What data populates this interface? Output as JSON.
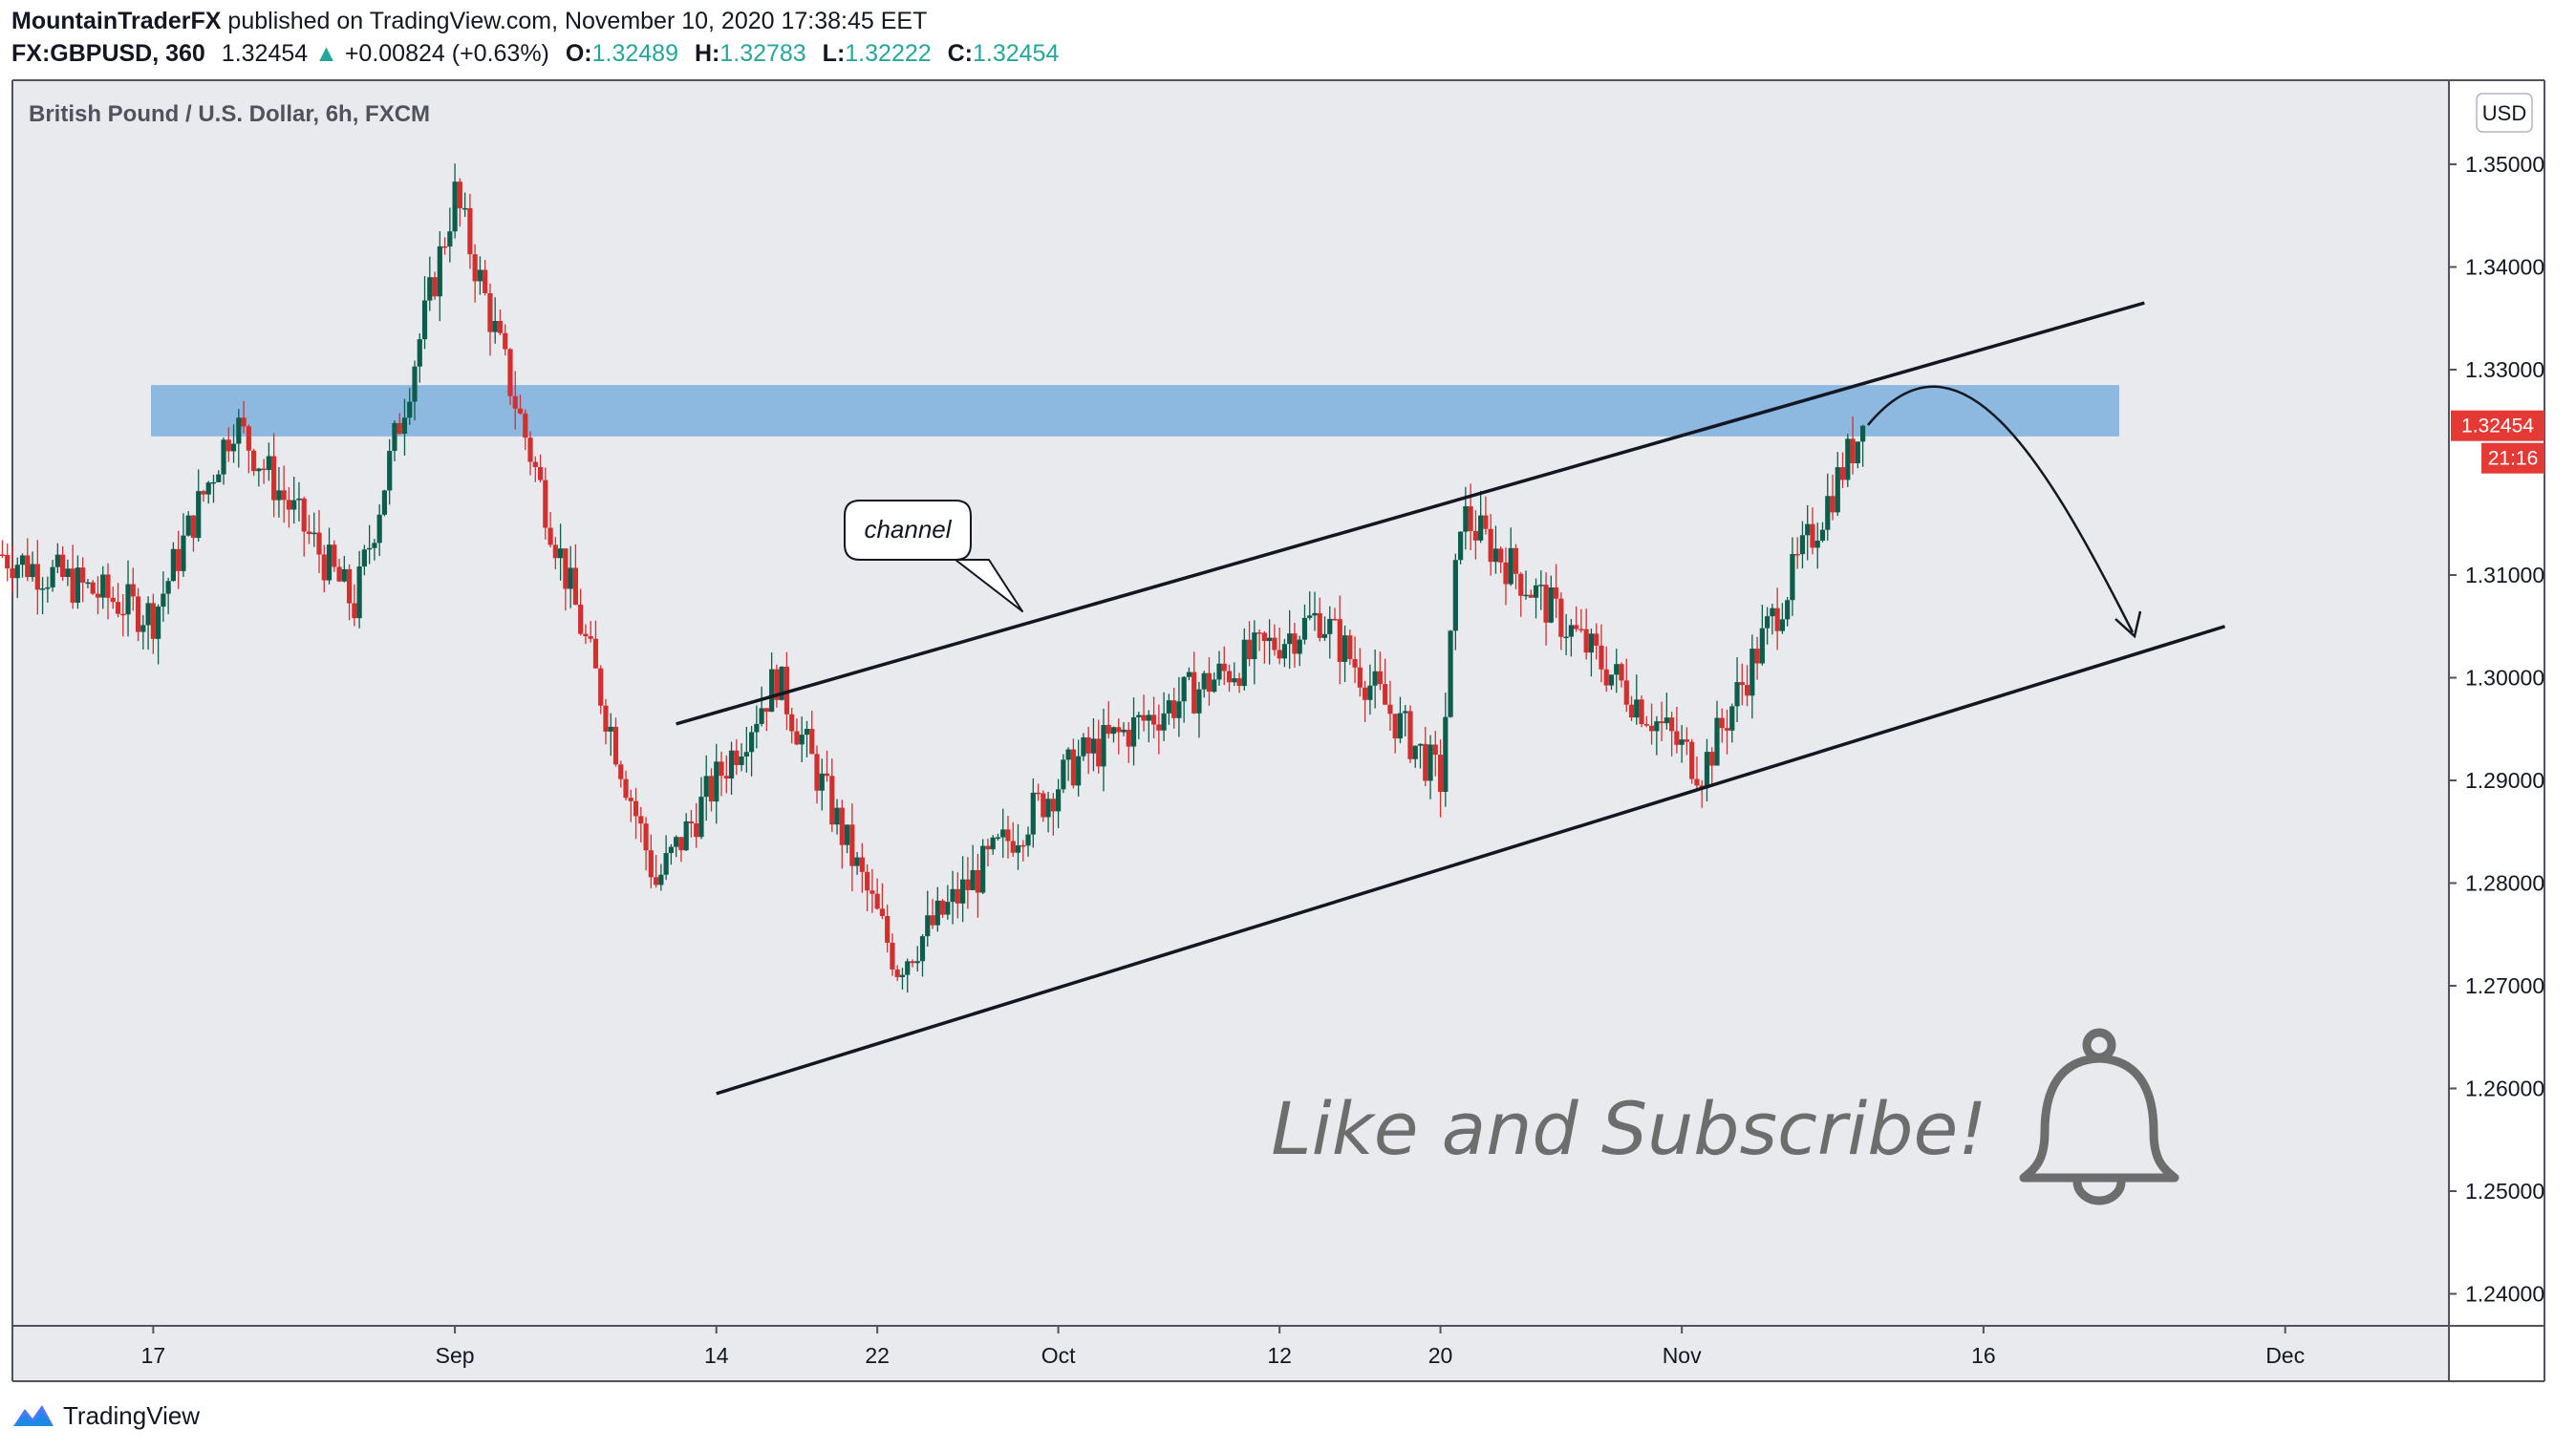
{
  "header": {
    "publisher": "MountainTraderFX",
    "published_text": "published on TradingView.com, November 10, 2020 17:38:45 EET",
    "symbol": "FX:GBPUSD, 360",
    "last": "1.32454",
    "change": "+0.00824 (+0.63%)",
    "change_icon": "triangle-up-icon",
    "o_label": "O:",
    "o": "1.32489",
    "h_label": "H:",
    "h": "1.32783",
    "l_label": "L:",
    "l": "1.32222",
    "c_label": "C:",
    "c": "1.32454"
  },
  "chart_title": "British Pound / U.S. Dollar, 6h, FXCM",
  "currency_badge": "USD",
  "price_tag": "1.32454",
  "countdown_tag": "21:16",
  "annotation_callout": "channel",
  "annotation_text": "Like and Subscribe!",
  "bell_icon": "bell-icon",
  "footer": {
    "brand": "TradingView",
    "logo": "tradingview-logo-icon"
  },
  "colors": {
    "up_candle": "#0d5d4c",
    "down_candle": "#d32f2f",
    "zone_fill": "#6fa8dc",
    "background": "#e8eaee",
    "price_tag_bg": "#e53935",
    "up_text": "#26a69a"
  },
  "chart_data": {
    "type": "candlestick",
    "title": "British Pound / U.S. Dollar, 6h, FXCM",
    "y_axis": {
      "label": "USD",
      "ticks": [
        "1.35000",
        "1.34000",
        "1.33000",
        "1.31000",
        "1.30000",
        "1.29000",
        "1.28000",
        "1.27000",
        "1.26000",
        "1.25000",
        "1.24000"
      ],
      "range": [
        1.2365,
        1.3618
      ]
    },
    "x_axis": {
      "ticks": [
        "17",
        "Sep",
        "14",
        "22",
        "Oct",
        "12",
        "20",
        "Nov",
        "16",
        "Dec"
      ]
    },
    "last_price": 1.32454,
    "key_points": [
      {
        "date": "Aug 17",
        "price": 1.306
      },
      {
        "date": "Aug 21",
        "price": 1.325
      },
      {
        "date": "Aug 27",
        "price": 1.307
      },
      {
        "date": "Sep 1",
        "price": 1.347
      },
      {
        "date": "Sep 11",
        "price": 1.28
      },
      {
        "date": "Sep 17",
        "price": 1.3
      },
      {
        "date": "Sep 23",
        "price": 1.272
      },
      {
        "date": "Oct 2",
        "price": 1.292
      },
      {
        "date": "Oct 14",
        "price": 1.306
      },
      {
        "date": "Oct 20",
        "price": 1.29
      },
      {
        "date": "Oct 21",
        "price": 1.316
      },
      {
        "date": "Nov 2",
        "price": 1.291
      },
      {
        "date": "Nov 10",
        "price": 1.32454
      }
    ],
    "resistance_zone": [
      1.3235,
      1.3285
    ],
    "trendlines": [
      {
        "name": "upper channel",
        "from": {
          "date": "Sep 12",
          "price": 1.2955
        },
        "to": {
          "date": "Nov 24",
          "price": 1.3365
        }
      },
      {
        "name": "lower channel",
        "from": {
          "date": "Sep 14",
          "price": 1.2595
        },
        "to": {
          "date": "Nov 28",
          "price": 1.305
        }
      }
    ]
  }
}
